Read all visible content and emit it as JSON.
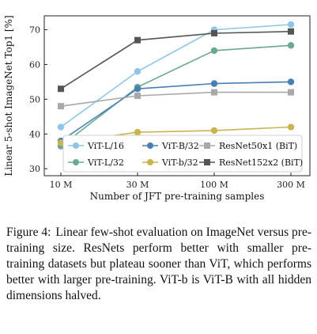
{
  "chart_data": {
    "type": "line",
    "categories": [
      "10 M",
      "30 M",
      "100 M",
      "300 M"
    ],
    "xlabel": "Number of JFT pre-training samples",
    "ylabel": "Linear 5-shot ImageNet Top1 [%]",
    "ylim": [
      28,
      74
    ],
    "yticks": [
      30,
      40,
      50,
      60,
      70
    ],
    "grid": false,
    "legend_position": "bottom-right",
    "series": [
      {
        "name": "ViT-L/16",
        "color": "#8ec6e8",
        "marker": "circle",
        "values": [
          42,
          58,
          70,
          71.5
        ]
      },
      {
        "name": "ViT-L/32",
        "color": "#6ba88e",
        "marker": "circle",
        "values": [
          36.5,
          53.5,
          64,
          65.5
        ]
      },
      {
        "name": "ViT-B/32",
        "color": "#4a7fb5",
        "marker": "circle",
        "values": [
          38,
          53,
          54.5,
          55
        ]
      },
      {
        "name": "ViT-b/32",
        "color": "#c9b44d",
        "marker": "circle",
        "values": [
          37.5,
          40.5,
          41,
          42
        ]
      },
      {
        "name": "ResNet50x1 (BiT)",
        "color": "#a8a8a8",
        "marker": "square",
        "values": [
          48,
          51,
          52,
          52
        ]
      },
      {
        "name": "ResNet152x2 (BiT)",
        "color": "#555555",
        "marker": "square",
        "values": [
          53,
          67,
          69,
          69.5
        ]
      }
    ]
  },
  "caption": {
    "label": "Figure 4:",
    "text": "Linear few-shot evaluation on ImageNet versus pre-training size. ResNets perform better with smaller pre-training datasets but plateau sooner than ViT, which performs better with larger pre-training. ViT-b is ViT-B with all hidden dimensions halved."
  }
}
